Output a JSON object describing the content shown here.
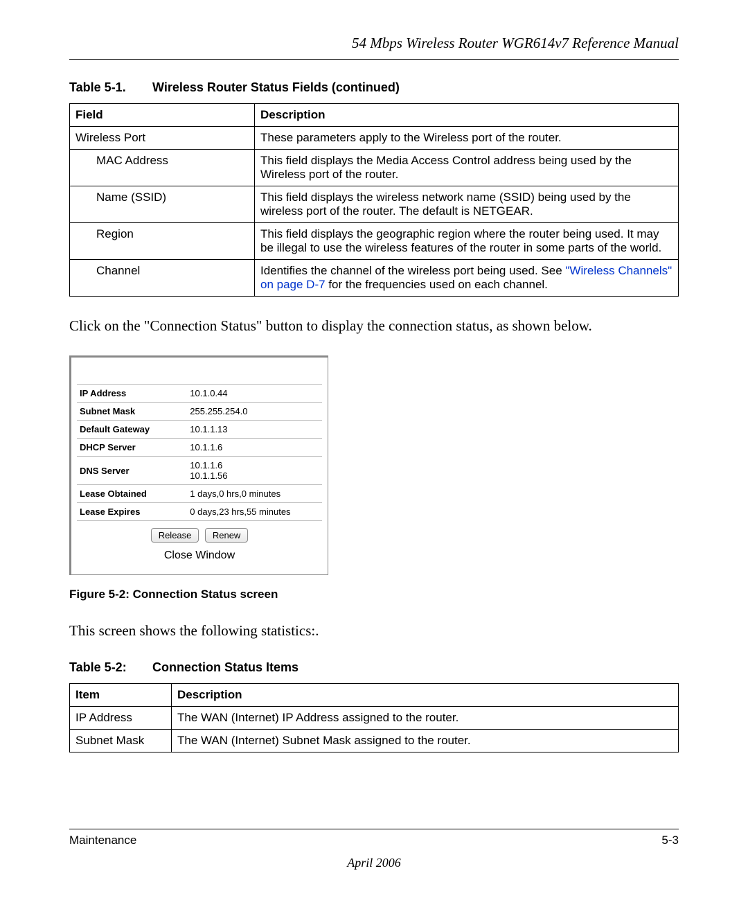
{
  "header": {
    "title": "54 Mbps Wireless Router WGR614v7 Reference Manual"
  },
  "table1": {
    "caption_num": "Table 5-1.",
    "caption_title": "Wireless Router Status Fields  (continued)",
    "head_field": "Field",
    "head_desc": "Description",
    "rows": [
      {
        "field": "Wireless Port",
        "indent": 0,
        "desc": "These parameters apply to the Wireless port of the router."
      },
      {
        "field": "MAC Address",
        "indent": 1,
        "desc": "This field displays the Media Access Control address being used by the Wireless port of the router."
      },
      {
        "field": "Name (SSID)",
        "indent": 1,
        "desc": "This field displays the wireless network name (SSID) being used by the wireless port of the router. The default is NETGEAR."
      },
      {
        "field": "Region",
        "indent": 1,
        "desc": "This field displays the geographic region where the router being used. It may be illegal to use the wireless features of the router in some parts of the world."
      },
      {
        "field": "Channel",
        "indent": 1,
        "desc_pre": "Identifies the channel of the wireless port being used. See ",
        "link": "\"Wireless Channels\" on page D-7",
        "desc_post": " for the frequencies used on each channel."
      }
    ]
  },
  "para1": "Click on the \"Connection Status\" button to display the connection status, as shown below.",
  "conn": {
    "rows": [
      {
        "label": "IP Address",
        "value": "10.1.0.44"
      },
      {
        "label": "Subnet Mask",
        "value": "255.255.254.0"
      },
      {
        "label": "Default Gateway",
        "value": "10.1.1.13"
      },
      {
        "label": "DHCP Server",
        "value": "10.1.1.6"
      },
      {
        "label": "DNS Server",
        "value": "10.1.1.6\n10.1.1.56"
      },
      {
        "label": "Lease Obtained",
        "value": "1 days,0 hrs,0 minutes"
      },
      {
        "label": "Lease Expires",
        "value": "0 days,23 hrs,55 minutes"
      }
    ],
    "btn_release": "Release",
    "btn_renew": "Renew",
    "btn_close": "Close Window"
  },
  "figure_caption": "Figure 5-2:  Connection Status screen",
  "para2": "This screen shows the following statistics:.",
  "table2": {
    "caption_num": "Table 5-2:",
    "caption_title": "Connection Status Items",
    "head_item": "Item",
    "head_desc": "Description",
    "rows": [
      {
        "item": "IP Address",
        "desc": "The WAN (Internet) IP Address assigned to the router."
      },
      {
        "item": "Subnet Mask",
        "desc": "The WAN (Internet) Subnet Mask assigned to the router."
      }
    ]
  },
  "footer": {
    "left": "Maintenance",
    "right": "5-3",
    "date": "April 2006"
  }
}
